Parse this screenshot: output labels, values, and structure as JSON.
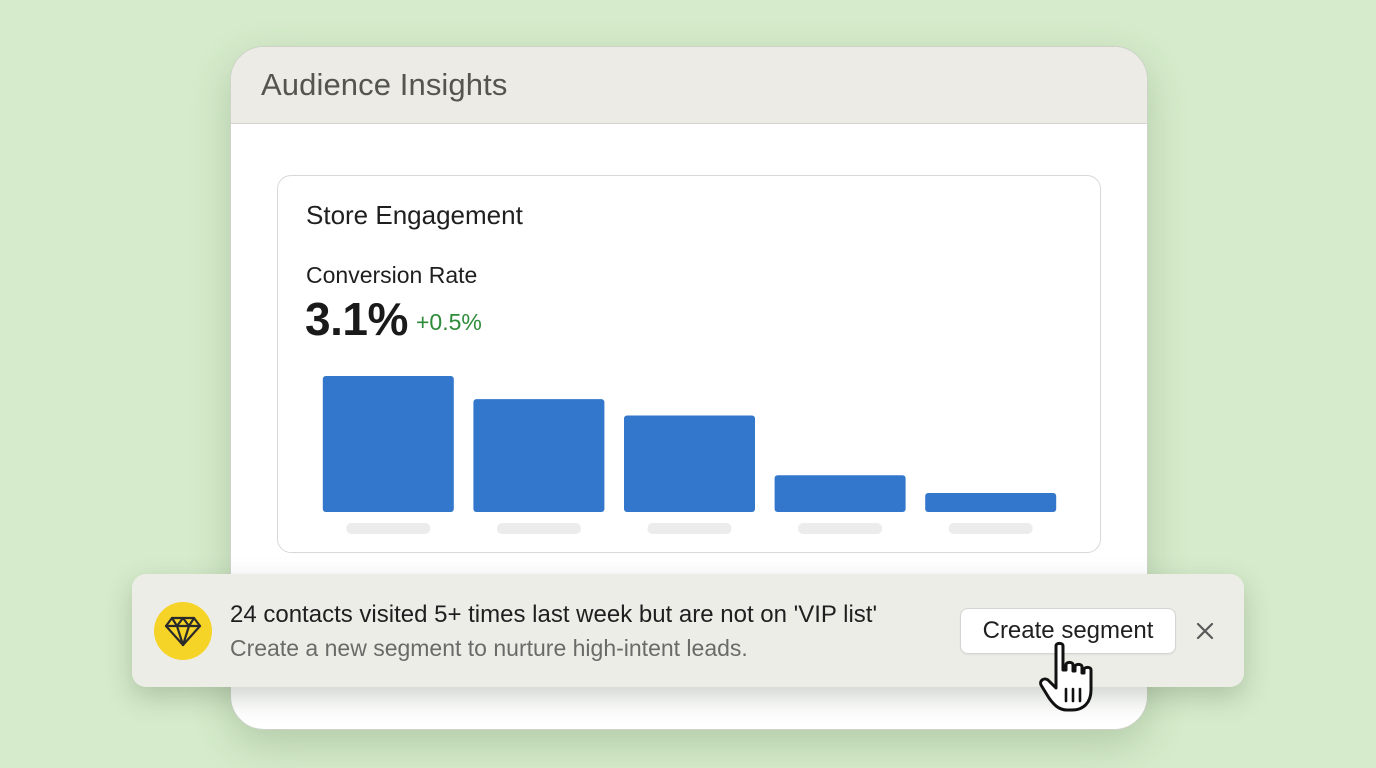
{
  "window": {
    "title": "Audience Insights"
  },
  "card": {
    "title": "Store Engagement",
    "metric_label": "Conversion Rate",
    "metric_value": "3.1%",
    "metric_delta": "+0.5%",
    "delta_color": "#2e8b3a"
  },
  "chart_data": {
    "type": "bar",
    "categories": [
      "",
      "",
      "",
      "",
      ""
    ],
    "values": [
      100,
      83,
      71,
      27,
      14
    ],
    "ylim": [
      0,
      100
    ],
    "bar_color": "#3277cb",
    "grid": false
  },
  "banner": {
    "icon": "gem-icon",
    "icon_bg": "#f5d327",
    "headline": "24 contacts visited 5+ times last week but are not on 'VIP list'",
    "subtext": "Create a new segment to nurture high-intent leads.",
    "cta_label": "Create segment",
    "close_icon": "close-icon"
  },
  "colors": {
    "background": "#d5ebcb",
    "accent": "#3277cb"
  }
}
